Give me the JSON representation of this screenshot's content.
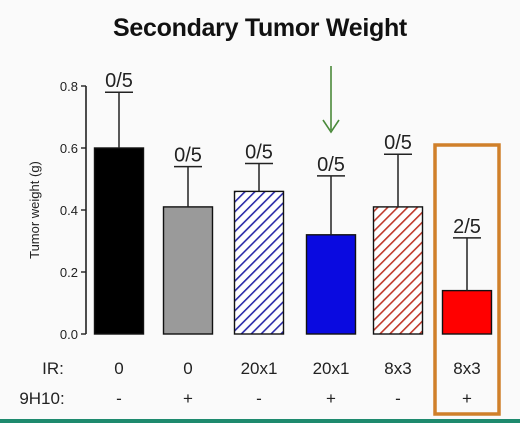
{
  "chart_data": {
    "type": "bar",
    "title": "Secondary Tumor Weight",
    "ylabel": "Tumor weight (g)",
    "ylim": [
      0,
      0.8
    ],
    "yticks": [
      "0.0",
      "0.2",
      "0.4",
      "0.6",
      "0.8"
    ],
    "categories": [
      "0 / -",
      "0 / +",
      "20x1 / -",
      "20x1 / +",
      "8x3 / -",
      "8x3 / +"
    ],
    "values": [
      0.6,
      0.41,
      0.46,
      0.32,
      0.41,
      0.14
    ],
    "error_upper": [
      0.78,
      0.54,
      0.55,
      0.51,
      0.58,
      0.31
    ],
    "fractions": [
      "0/5",
      "0/5",
      "0/5",
      "0/5",
      "0/5",
      "2/5"
    ],
    "row_labels": {
      "ir": "IR:",
      "h9": "9H10:"
    },
    "ir": [
      "0",
      "0",
      "20x1",
      "20x1",
      "8x3",
      "8x3"
    ],
    "h9": [
      "-",
      "+",
      "-",
      "+",
      "-",
      "+"
    ],
    "styles": [
      {
        "fill": "#000000",
        "hatch": false,
        "hatch_color": ""
      },
      {
        "fill": "#9a9a9a",
        "hatch": false,
        "hatch_color": ""
      },
      {
        "fill": "#ffffff",
        "hatch": true,
        "hatch_color": "#2a2aa8"
      },
      {
        "fill": "#0a0ae0",
        "hatch": false,
        "hatch_color": ""
      },
      {
        "fill": "#ffffff",
        "hatch": true,
        "hatch_color": "#c0392b"
      },
      {
        "fill": "#ff0000",
        "hatch": false,
        "hatch_color": ""
      }
    ],
    "highlight_index": 5,
    "highlight_color": "#d0802a",
    "arrow_index": 3,
    "arrow_color": "#4a8a3a",
    "accent_strip_color": "#1e8a6e",
    "grid": false
  }
}
